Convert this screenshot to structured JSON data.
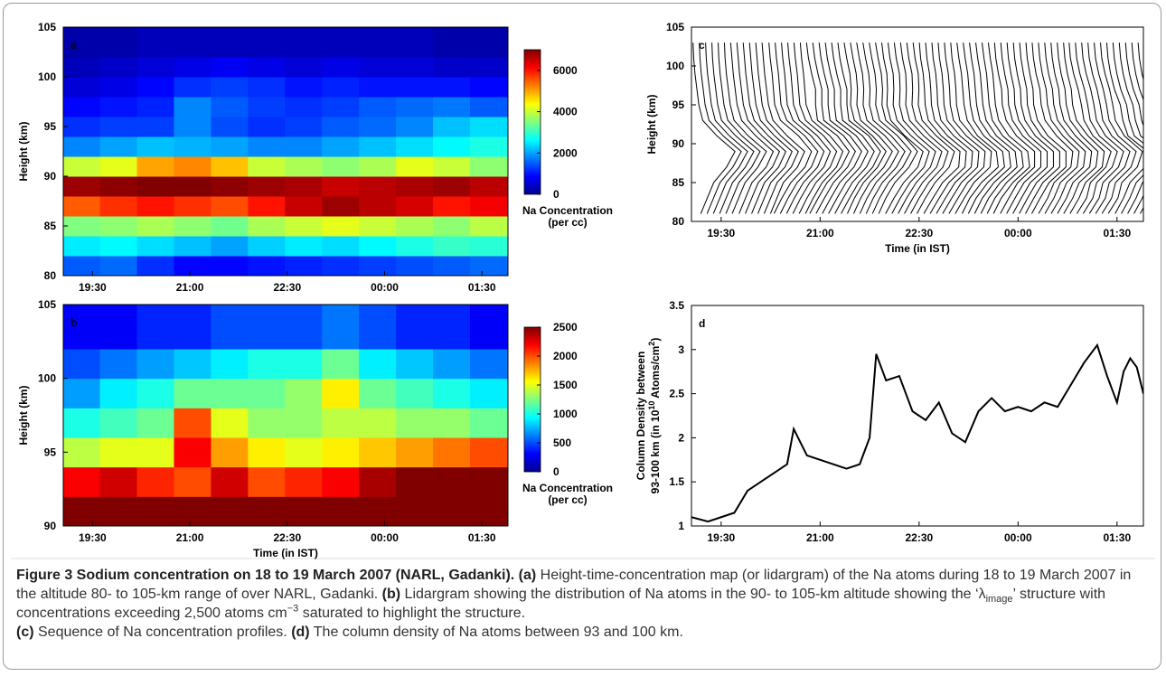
{
  "chart_data": [
    {
      "type": "heatmap",
      "label": "a",
      "ylabel": "Height (km)",
      "xlim": [
        19.05,
        25.9
      ],
      "ylim": [
        80,
        105
      ],
      "xticks": [
        {
          "value": 19.5,
          "label": "19:30"
        },
        {
          "value": 21,
          "label": "21:00"
        },
        {
          "value": 22.5,
          "label": "22:30"
        },
        {
          "value": 24,
          "label": "00:00"
        },
        {
          "value": 25.5,
          "label": "01:30"
        }
      ],
      "yticks": [
        80,
        85,
        90,
        95,
        100,
        105
      ],
      "x": [
        19.33,
        19.9,
        20.47,
        21.04,
        21.61,
        22.18,
        22.75,
        23.32,
        23.89,
        24.46,
        25.03,
        25.6
      ],
      "y": [
        81,
        83,
        85,
        87,
        89,
        91,
        93,
        95,
        97,
        99,
        101,
        103
      ],
      "z": [
        [
          1500,
          1600,
          1200,
          900,
          900,
          1000,
          1100,
          1200,
          1300,
          1400,
          1500,
          1600
        ],
        [
          2500,
          2600,
          2400,
          2200,
          2000,
          2300,
          2500,
          2400,
          2600,
          2800,
          3000,
          2900
        ],
        [
          3500,
          3600,
          3800,
          3600,
          3400,
          3800,
          4000,
          4200,
          4000,
          3800,
          3600,
          3900
        ],
        [
          5500,
          5800,
          6000,
          5800,
          5600,
          6000,
          6500,
          6800,
          6600,
          6400,
          6000,
          6200
        ],
        [
          6800,
          6900,
          7000,
          7000,
          6900,
          6800,
          6700,
          6500,
          6600,
          6700,
          6800,
          6600
        ],
        [
          4000,
          4200,
          5000,
          5200,
          4800,
          4000,
          3800,
          3600,
          3800,
          4200,
          4000,
          3600
        ],
        [
          1800,
          2000,
          2200,
          2100,
          2000,
          1800,
          1800,
          2000,
          2200,
          2400,
          2600,
          2800
        ],
        [
          1200,
          1300,
          1300,
          1800,
          1400,
          1200,
          1300,
          1500,
          1600,
          1800,
          2200,
          2400
        ],
        [
          900,
          1000,
          1100,
          1800,
          1500,
          1300,
          1200,
          1300,
          1500,
          1600,
          1700,
          1500
        ],
        [
          600,
          700,
          900,
          1200,
          1300,
          1200,
          1000,
          1100,
          1000,
          1000,
          1000,
          900
        ],
        [
          400,
          500,
          600,
          700,
          800,
          700,
          600,
          700,
          600,
          600,
          500,
          500
        ],
        [
          300,
          300,
          400,
          400,
          400,
          400,
          400,
          400,
          400,
          400,
          300,
          300
        ]
      ],
      "clim": [
        0,
        7000
      ],
      "cticks": [
        0,
        2000,
        4000,
        6000
      ],
      "colorbar_label": [
        "Na Concentration",
        "(per cc)"
      ]
    },
    {
      "type": "heatmap",
      "label": "b",
      "ylabel": "Height (km)",
      "xlabel": "Time (in IST)",
      "xlim": [
        19.05,
        25.9
      ],
      "ylim": [
        90,
        105
      ],
      "xticks": [
        {
          "value": 19.5,
          "label": "19:30"
        },
        {
          "value": 21,
          "label": "21:00"
        },
        {
          "value": 22.5,
          "label": "22:30"
        },
        {
          "value": 24,
          "label": "00:00"
        },
        {
          "value": 25.5,
          "label": "01:30"
        }
      ],
      "yticks": [
        90,
        95,
        100,
        105
      ],
      "x": [
        19.33,
        19.9,
        20.47,
        21.04,
        21.61,
        22.18,
        22.75,
        23.32,
        23.89,
        24.46,
        25.03,
        25.6
      ],
      "y": [
        91,
        93,
        95,
        97,
        99,
        101,
        103
      ],
      "z": [
        [
          2500,
          2500,
          2500,
          2500,
          2500,
          2500,
          2500,
          2500,
          2500,
          2500,
          2500,
          2500
        ],
        [
          2200,
          2300,
          2100,
          2000,
          2300,
          2000,
          2100,
          2200,
          2400,
          2500,
          2500,
          2500
        ],
        [
          1400,
          1500,
          1500,
          2200,
          1800,
          1600,
          1500,
          1600,
          1700,
          1800,
          1900,
          2000
        ],
        [
          1000,
          1100,
          1200,
          2000,
          1500,
          1300,
          1300,
          1400,
          1400,
          1300,
          1300,
          1200
        ],
        [
          700,
          900,
          1000,
          1200,
          1200,
          1200,
          1300,
          1600,
          1200,
          1100,
          1000,
          900
        ],
        [
          500,
          600,
          700,
          800,
          900,
          1000,
          1000,
          1200,
          900,
          800,
          700,
          600
        ],
        [
          300,
          300,
          400,
          400,
          500,
          500,
          500,
          600,
          500,
          400,
          400,
          300
        ]
      ],
      "clim": [
        0,
        2500
      ],
      "cticks": [
        0,
        500,
        1000,
        1500,
        2000,
        2500
      ],
      "colorbar_label": [
        "Na Concentration",
        "(per cc)"
      ]
    },
    {
      "type": "profiles",
      "label": "c",
      "ylabel": "Height (km)",
      "xlabel": "Time (in IST)",
      "xlim": [
        19.05,
        25.9
      ],
      "ylim": [
        80,
        105
      ],
      "xticks": [
        {
          "value": 19.5,
          "label": "19:30"
        },
        {
          "value": 21,
          "label": "21:00"
        },
        {
          "value": 22.5,
          "label": "22:30"
        },
        {
          "value": 24,
          "label": "00:00"
        },
        {
          "value": 25.5,
          "label": "01:30"
        }
      ],
      "yticks": [
        80,
        85,
        90,
        95,
        100,
        105
      ],
      "color": "#000000"
    },
    {
      "type": "line",
      "label": "d",
      "ylabel": {
        "line1": "Column Density between",
        "line2": "93-100 km (in 10",
        "exp": "10",
        "unit": " Atoms/cm",
        "unit_exp": "2",
        "close": ")"
      },
      "xlim": [
        19.05,
        25.9
      ],
      "ylim": [
        1,
        3.5
      ],
      "xticks": [
        {
          "value": 19.5,
          "label": "19:30"
        },
        {
          "value": 21,
          "label": "21:00"
        },
        {
          "value": 22.5,
          "label": "22:30"
        },
        {
          "value": 24,
          "label": "00:00"
        },
        {
          "value": 25.5,
          "label": "01:30"
        }
      ],
      "yticks": [
        1,
        1.5,
        2,
        2.5,
        3,
        3.5
      ],
      "color": "#000000",
      "x": [
        19.05,
        19.3,
        19.5,
        19.7,
        19.9,
        20.1,
        20.3,
        20.5,
        20.6,
        20.8,
        21.0,
        21.2,
        21.4,
        21.6,
        21.75,
        21.85,
        22.0,
        22.2,
        22.4,
        22.6,
        22.8,
        23.0,
        23.2,
        23.4,
        23.6,
        23.8,
        24.0,
        24.2,
        24.4,
        24.6,
        24.8,
        25.0,
        25.2,
        25.35,
        25.5,
        25.6,
        25.7,
        25.8,
        25.9
      ],
      "values": [
        1.1,
        1.05,
        1.1,
        1.15,
        1.4,
        1.5,
        1.6,
        1.7,
        2.1,
        1.8,
        1.75,
        1.7,
        1.65,
        1.7,
        2.0,
        2.95,
        2.65,
        2.7,
        2.3,
        2.2,
        2.4,
        2.05,
        1.95,
        2.3,
        2.45,
        2.3,
        2.35,
        2.3,
        2.4,
        2.35,
        2.6,
        2.85,
        3.05,
        2.7,
        2.4,
        2.75,
        2.9,
        2.8,
        2.5
      ]
    }
  ],
  "caption": {
    "title": "Figure 3 Sodium concentration on 18 to 19 March 2007 (NARL, Gadanki).",
    "a_label": "(a)",
    "a_text": " Height-time-concentration map (or lidargram) of the Na atoms during 18 to 19 March 2007 in the altitude 80- to 105-km range of over NARL, Gadanki.",
    "b_label": "(b)",
    "b_text": " Lidargram showing the distribution of Na atoms in the 90- to 105-km altitude showing the ‘λ",
    "b_sub": "image",
    "b_text2": "’ structure with concentrations exceeding 2,500 atoms cm",
    "b_sup": "−3",
    "b_text3": " saturated to highlight the structure.",
    "c_label": "(c)",
    "c_text": " Sequence of Na concentration profiles.",
    "d_label": "(d)",
    "d_text": " The column density of Na atoms between 93 and 100 km."
  }
}
